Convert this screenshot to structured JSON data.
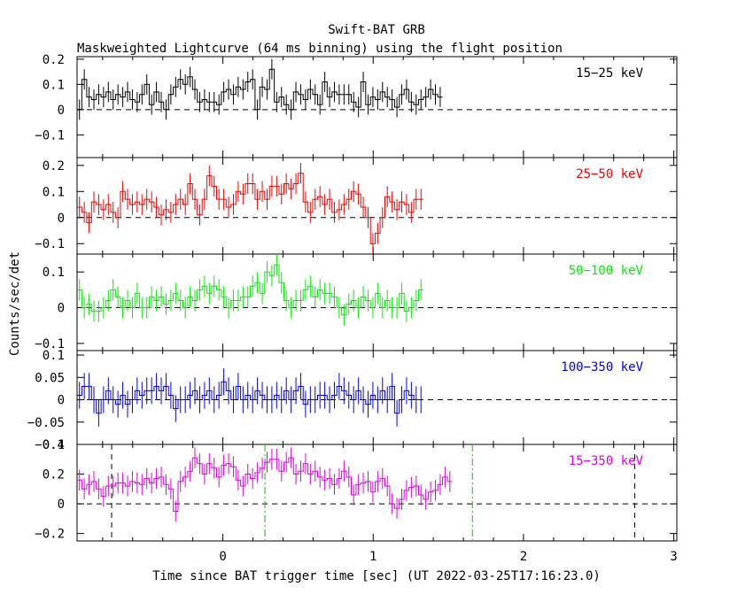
{
  "chart_data": {
    "type": "line",
    "title": "Swift-BAT GRB",
    "subtitle": "Maskweighted Lightcurve (64 ms binning) using the flight position",
    "xlabel": "Time since BAT trigger time [sec] (UT 2022-03-25T17:16:23.0)",
    "ylabel": "Counts/sec/det",
    "xlim": [
      -0.97,
      3.02
    ],
    "x_ticks": [
      "0",
      "1",
      "2",
      "3"
    ],
    "x_tick_values": [
      0,
      1,
      2,
      3
    ],
    "vertical_markers": [
      {
        "x": -0.74,
        "style": "dashed",
        "color": "#000000"
      },
      {
        "x": 2.74,
        "style": "dashed",
        "color": "#000000"
      },
      {
        "x": 0.28,
        "style": "dash-dot",
        "color": "#00cc00"
      },
      {
        "x": 1.66,
        "style": "dash-dot",
        "color": "#00cc00"
      }
    ],
    "panels": [
      {
        "name": "15-25 keV",
        "label": "15−25 keV",
        "color": "#000000",
        "ylim": [
          -0.19,
          0.21
        ],
        "yticks": [
          -0.1,
          0,
          0.1,
          0.2
        ],
        "ytick_labels": [
          "−0.1",
          "0",
          "0.1",
          "0.2"
        ],
        "t0": -0.97,
        "dt": 0.032,
        "err": 0.04,
        "values": [
          0.0,
          0.12,
          0.05,
          0.04,
          0.06,
          0.05,
          0.07,
          0.04,
          0.06,
          0.05,
          0.07,
          0.04,
          0.03,
          0.06,
          0.1,
          0.02,
          0.07,
          0.03,
          0.0,
          0.06,
          0.09,
          0.12,
          0.1,
          0.13,
          0.08,
          0.03,
          0.04,
          0.03,
          0.03,
          0.02,
          0.07,
          0.08,
          0.06,
          0.09,
          0.08,
          0.11,
          0.12,
          0.0,
          0.09,
          0.08,
          0.16,
          0.03,
          0.05,
          0.02,
          0.0,
          0.07,
          0.06,
          0.04,
          0.08,
          0.06,
          0.02,
          0.11,
          0.05,
          0.07,
          0.06,
          0.06,
          0.06,
          0.03,
          0.01,
          0.11,
          0.02,
          0.05,
          0.04,
          0.07,
          0.05,
          0.04,
          0.01,
          0.06,
          0.08,
          0.03,
          0.02,
          0.04,
          0.05,
          0.08,
          0.06,
          0.05
        ]
      },
      {
        "name": "25-50 keV",
        "label": "25−50 keV",
        "color": "#ee0000",
        "ylim": [
          -0.14,
          0.23
        ],
        "yticks": [
          -0.1,
          0,
          0.1,
          0.2
        ],
        "ytick_labels": [
          "−0.1",
          "0",
          "0.1",
          "0.2"
        ],
        "t0": -0.97,
        "dt": 0.032,
        "err": 0.04,
        "values": [
          0.04,
          0.02,
          -0.02,
          0.06,
          0.05,
          0.03,
          0.05,
          0.02,
          0.0,
          0.1,
          0.07,
          0.05,
          0.06,
          0.05,
          0.07,
          0.06,
          0.04,
          0.01,
          0.03,
          0.02,
          0.05,
          0.07,
          0.05,
          0.13,
          0.07,
          0.01,
          0.07,
          0.16,
          0.12,
          0.07,
          0.07,
          0.04,
          0.05,
          0.1,
          0.09,
          0.13,
          0.13,
          0.07,
          0.1,
          0.07,
          0.12,
          0.12,
          0.09,
          0.13,
          0.11,
          0.13,
          0.17,
          0.06,
          0.02,
          0.07,
          0.08,
          0.05,
          0.07,
          0.02,
          0.03,
          0.05,
          0.07,
          0.1,
          0.09,
          0.04,
          0.0,
          -0.1,
          -0.06,
          0.0,
          0.08,
          0.06,
          0.03,
          0.06,
          0.05,
          0.02,
          0.07,
          0.07
        ]
      },
      {
        "name": "50-100 keV",
        "label": "50−100 keV",
        "color": "#00ee00",
        "ylim": [
          -0.12,
          0.15
        ],
        "yticks": [
          -0.1,
          0,
          0.1
        ],
        "ytick_labels": [
          "−0.1",
          "0",
          "0.1"
        ],
        "t0": -0.97,
        "dt": 0.032,
        "err": 0.03,
        "values": [
          0.05,
          0.0,
          0.01,
          -0.01,
          -0.01,
          0.0,
          0.02,
          0.05,
          0.03,
          0.0,
          0.02,
          0.0,
          0.04,
          0.0,
          0.0,
          0.03,
          0.02,
          0.03,
          0.01,
          0.02,
          0.04,
          0.02,
          0.0,
          0.03,
          0.02,
          0.05,
          0.06,
          0.04,
          0.06,
          0.05,
          0.03,
          0.0,
          0.02,
          0.02,
          0.03,
          0.03,
          0.06,
          0.07,
          0.04,
          0.1,
          0.09,
          0.12,
          0.07,
          0.02,
          0.0,
          0.02,
          0.02,
          0.05,
          0.06,
          0.03,
          0.05,
          0.04,
          0.04,
          0.03,
          0.0,
          -0.02,
          0.01,
          0.02,
          0.0,
          0.03,
          0.02,
          0.0,
          0.04,
          0.0,
          0.02,
          0.0,
          0.0,
          0.04,
          -0.01,
          0.0,
          0.02,
          0.05
        ]
      },
      {
        "name": "100-350 keV",
        "label": "100−350 keV",
        "color": "#0000ee",
        "ylim": [
          -0.1,
          0.11
        ],
        "yticks": [
          -0.1,
          -0.05,
          0,
          0.05,
          0.1
        ],
        "ytick_labels": [
          "−0.1",
          "−0.05",
          "0",
          "0.05",
          "0.1"
        ],
        "t0": -0.97,
        "dt": 0.032,
        "err": 0.03,
        "values": [
          0.01,
          0.03,
          0.03,
          0.0,
          -0.03,
          0.0,
          0.02,
          0.0,
          -0.01,
          0.01,
          -0.01,
          0.0,
          0.02,
          0.01,
          0.02,
          0.02,
          0.03,
          0.02,
          0.03,
          0.01,
          -0.02,
          0.0,
          0.0,
          0.01,
          0.02,
          0.0,
          0.01,
          0.02,
          0.0,
          0.01,
          0.04,
          0.02,
          0.0,
          0.03,
          0.0,
          0.01,
          0.0,
          0.02,
          0.01,
          0.0,
          0.0,
          0.01,
          0.0,
          0.02,
          0.0,
          0.02,
          0.03,
          -0.01,
          0.0,
          0.0,
          0.01,
          0.01,
          0.0,
          0.01,
          0.03,
          0.02,
          0.01,
          0.0,
          0.02,
          0.0,
          -0.01,
          0.01,
          0.0,
          0.02,
          0.0,
          0.03,
          -0.03,
          0.0,
          0.02,
          0.01,
          0.0,
          0.0
        ]
      },
      {
        "name": "15-350 keV",
        "label": "15−350 keV",
        "color": "#dd00dd",
        "ylim": [
          -0.25,
          0.4
        ],
        "yticks": [
          -0.2,
          0,
          0.2,
          0.4
        ],
        "ytick_labels": [
          "−0.2",
          "0",
          "0.2",
          "0.4"
        ],
        "t0": -0.97,
        "dt": 0.032,
        "err": 0.07,
        "values": [
          0.16,
          0.1,
          0.13,
          0.15,
          0.1,
          0.05,
          0.12,
          0.12,
          0.14,
          0.14,
          0.12,
          0.15,
          0.14,
          0.13,
          0.17,
          0.14,
          0.17,
          0.18,
          0.13,
          0.1,
          -0.05,
          0.15,
          0.18,
          0.22,
          0.31,
          0.27,
          0.2,
          0.27,
          0.24,
          0.18,
          0.26,
          0.27,
          0.25,
          0.16,
          0.12,
          0.2,
          0.17,
          0.21,
          0.24,
          0.28,
          0.3,
          0.3,
          0.22,
          0.28,
          0.31,
          0.2,
          0.22,
          0.27,
          0.2,
          0.22,
          0.18,
          0.16,
          0.17,
          0.13,
          0.17,
          0.22,
          0.18,
          0.06,
          0.13,
          0.14,
          0.15,
          0.08,
          0.15,
          0.17,
          0.12,
          0.0,
          -0.03,
          0.03,
          0.09,
          0.11,
          0.12,
          0.06,
          0.03,
          0.08,
          0.09,
          0.13,
          0.18,
          0.15
        ]
      }
    ]
  }
}
